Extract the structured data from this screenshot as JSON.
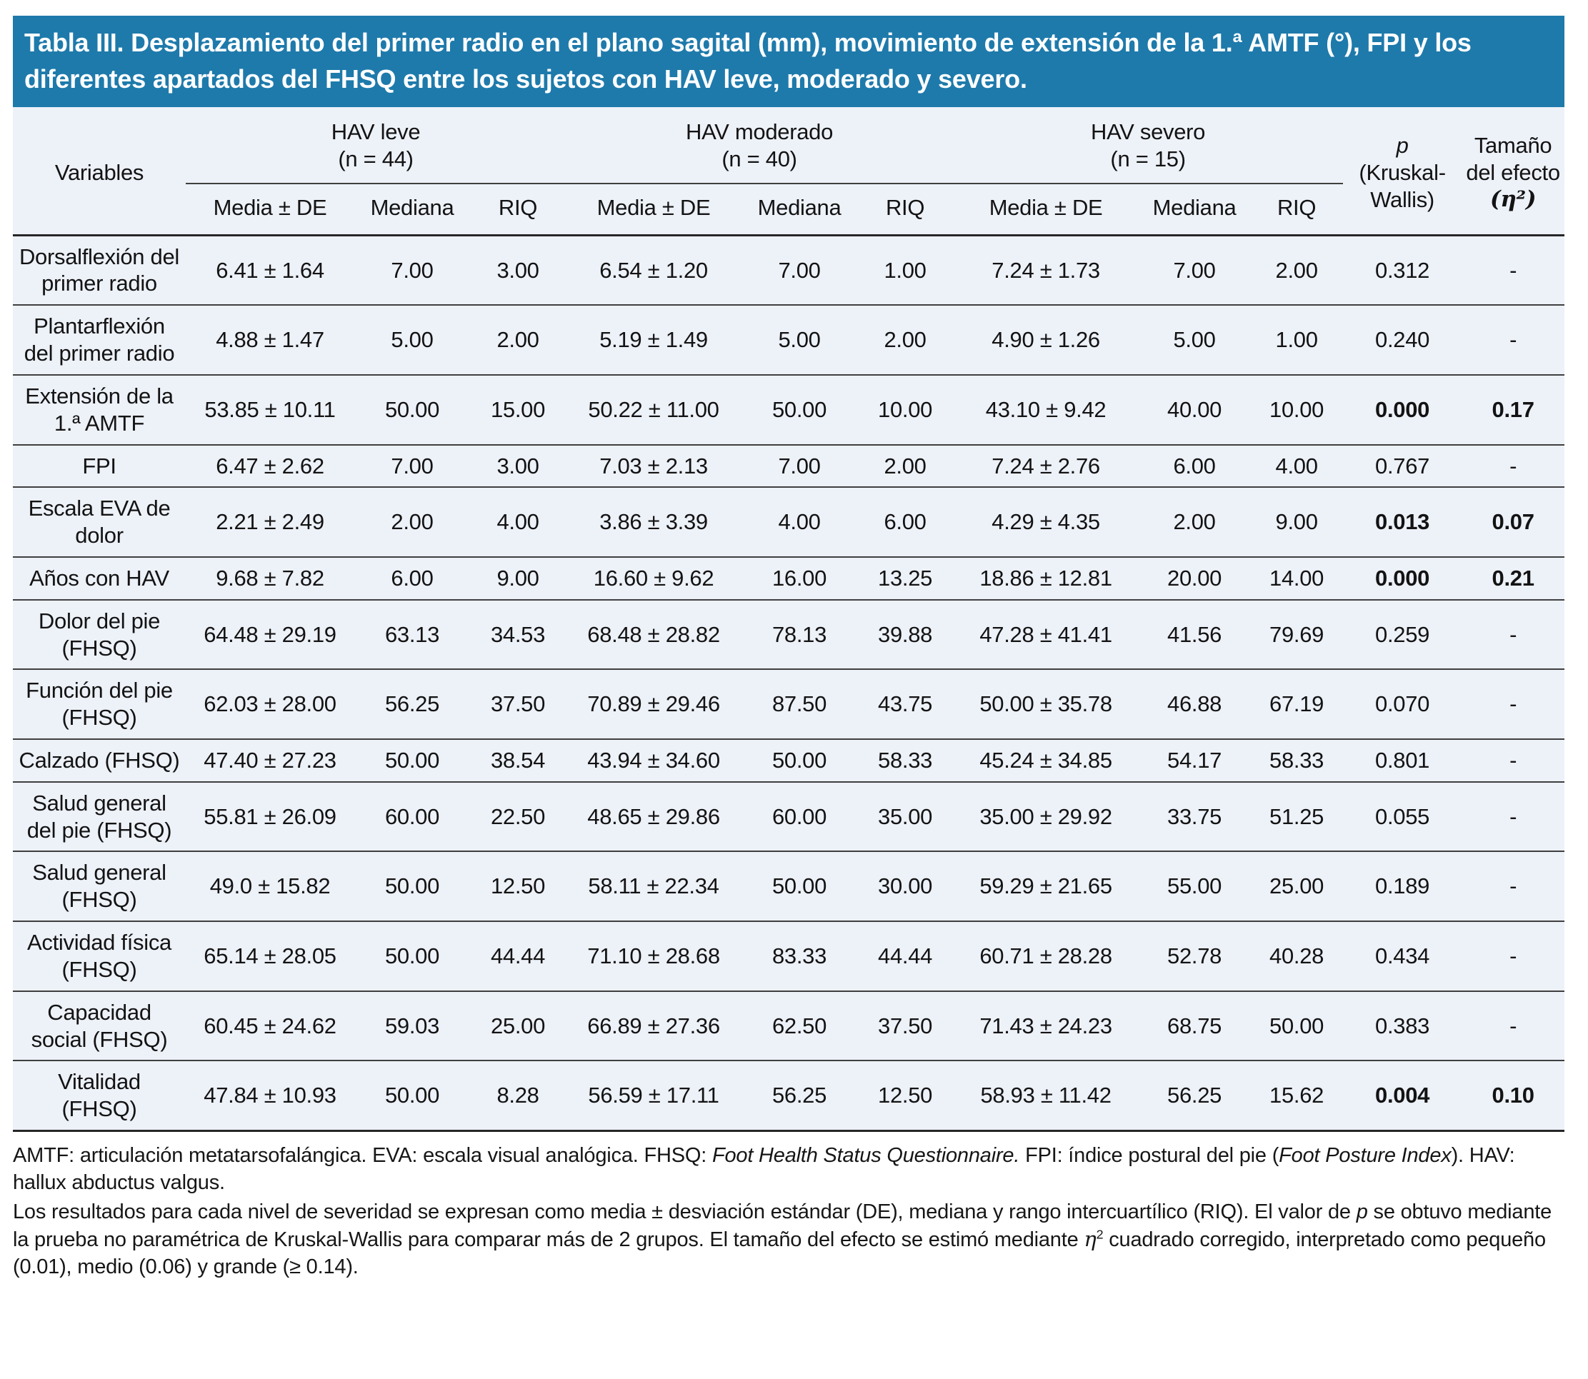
{
  "title": "Tabla III. Desplazamiento del primer radio en el plano sagital (mm), movimiento de extensión de la 1.ª AMTF (°), FPI y los diferentes apartados del FHSQ entre los sujetos con HAV leve, moderado y severo.",
  "colors": {
    "header_bg": "#1e7aab",
    "body_bg": "#edf1f8",
    "line": "#3f3f3f",
    "title_text": "#ffffff"
  },
  "columns": {
    "variables_label": "Variables",
    "groups": [
      {
        "name": "HAV leve",
        "n": "(n = 44)"
      },
      {
        "name": "HAV moderado",
        "n": "(n = 40)"
      },
      {
        "name": "HAV severo",
        "n": "(n = 15)"
      }
    ],
    "sub_headers": [
      "Media ± DE",
      "Mediana",
      "RIQ"
    ],
    "p_label": "p",
    "p_sub": "(Kruskal-Wallis)",
    "effect_label": "Tamaño del efecto",
    "effect_symbol": "(η²)"
  },
  "rows": [
    {
      "variable": "Dorsalflexión del primer radio",
      "values": [
        "6.41 ± 1.64",
        "7.00",
        "3.00",
        "6.54 ± 1.20",
        "7.00",
        "1.00",
        "7.24 ± 1.73",
        "7.00",
        "2.00"
      ],
      "p": "0.312",
      "effect": "-",
      "significant": false
    },
    {
      "variable": "Plantarflexión del primer radio",
      "values": [
        "4.88 ± 1.47",
        "5.00",
        "2.00",
        "5.19 ± 1.49",
        "5.00",
        "2.00",
        "4.90 ± 1.26",
        "5.00",
        "1.00"
      ],
      "p": "0.240",
      "effect": "-",
      "significant": false
    },
    {
      "variable": "Extensión de la 1.ª AMTF",
      "values": [
        "53.85 ± 10.11",
        "50.00",
        "15.00",
        "50.22 ± 11.00",
        "50.00",
        "10.00",
        "43.10 ± 9.42",
        "40.00",
        "10.00"
      ],
      "p": "0.000",
      "effect": "0.17",
      "significant": true
    },
    {
      "variable": "FPI",
      "values": [
        "6.47 ± 2.62",
        "7.00",
        "3.00",
        "7.03 ± 2.13",
        "7.00",
        "2.00",
        "7.24 ± 2.76",
        "6.00",
        "4.00"
      ],
      "p": "0.767",
      "effect": "-",
      "significant": false
    },
    {
      "variable": "Escala EVA de dolor",
      "values": [
        "2.21 ± 2.49",
        "2.00",
        "4.00",
        "3.86 ± 3.39",
        "4.00",
        "6.00",
        "4.29 ± 4.35",
        "2.00",
        "9.00"
      ],
      "p": "0.013",
      "effect": "0.07",
      "significant": true
    },
    {
      "variable": "Años con HAV",
      "values": [
        "9.68 ± 7.82",
        "6.00",
        "9.00",
        "16.60 ± 9.62",
        "16.00",
        "13.25",
        "18.86 ± 12.81",
        "20.00",
        "14.00"
      ],
      "p": "0.000",
      "effect": "0.21",
      "significant": true
    },
    {
      "variable": "Dolor del pie (FHSQ)",
      "values": [
        "64.48 ± 29.19",
        "63.13",
        "34.53",
        "68.48 ± 28.82",
        "78.13",
        "39.88",
        "47.28 ± 41.41",
        "41.56",
        "79.69"
      ],
      "p": "0.259",
      "effect": "-",
      "significant": false
    },
    {
      "variable": "Función del pie (FHSQ)",
      "values": [
        "62.03 ± 28.00",
        "56.25",
        "37.50",
        "70.89 ± 29.46",
        "87.50",
        "43.75",
        "50.00 ± 35.78",
        "46.88",
        "67.19"
      ],
      "p": "0.070",
      "effect": "-",
      "significant": false
    },
    {
      "variable": "Calzado (FHSQ)",
      "values": [
        "47.40 ± 27.23",
        "50.00",
        "38.54",
        "43.94 ± 34.60",
        "50.00",
        "58.33",
        "45.24 ± 34.85",
        "54.17",
        "58.33"
      ],
      "p": "0.801",
      "effect": "-",
      "significant": false
    },
    {
      "variable": "Salud general del pie (FHSQ)",
      "values": [
        "55.81 ± 26.09",
        "60.00",
        "22.50",
        "48.65 ± 29.86",
        "60.00",
        "35.00",
        "35.00 ± 29.92",
        "33.75",
        "51.25"
      ],
      "p": "0.055",
      "effect": "-",
      "significant": false
    },
    {
      "variable": "Salud general (FHSQ)",
      "values": [
        "49.0 ± 15.82",
        "50.00",
        "12.50",
        "58.11 ± 22.34",
        "50.00",
        "30.00",
        "59.29 ± 21.65",
        "55.00",
        "25.00"
      ],
      "p": "0.189",
      "effect": "-",
      "significant": false
    },
    {
      "variable": "Actividad física (FHSQ)",
      "values": [
        "65.14 ± 28.05",
        "50.00",
        "44.44",
        "71.10 ± 28.68",
        "83.33",
        "44.44",
        "60.71 ± 28.28",
        "52.78",
        "40.28"
      ],
      "p": "0.434",
      "effect": "-",
      "significant": false
    },
    {
      "variable": "Capacidad social (FHSQ)",
      "values": [
        "60.45 ± 24.62",
        "59.03",
        "25.00",
        "66.89 ± 27.36",
        "62.50",
        "37.50",
        "71.43 ± 24.23",
        "68.75",
        "50.00"
      ],
      "p": "0.383",
      "effect": "-",
      "significant": false
    },
    {
      "variable": "Vitalidad (FHSQ)",
      "values": [
        "47.84 ± 10.93",
        "50.00",
        "8.28",
        "56.59 ± 17.11",
        "56.25",
        "12.50",
        "58.93 ± 11.42",
        "56.25",
        "15.62"
      ],
      "p": "0.004",
      "effect": "0.10",
      "significant": true
    }
  ],
  "footnotes": [
    {
      "segments": [
        {
          "text": "AMTF: articulación metatarsofalángica. EVA: escala visual analógica. FHSQ: "
        },
        {
          "text": "Foot Health Status Questionnaire.",
          "italic": true
        },
        {
          "text": " FPI: índice postural del pie ("
        },
        {
          "text": "Foot Posture Index",
          "italic": true
        },
        {
          "text": "). HAV: hallux abductus valgus."
        }
      ]
    },
    {
      "segments": [
        {
          "text": "Los resultados para cada nivel de severidad se expresan como media ± desviación estándar (DE), mediana y rango intercuartílico (RIQ). El valor de "
        },
        {
          "text": "p",
          "italic": true
        },
        {
          "text": " se obtuvo mediante la prueba no paramétrica de Kruskal-Wallis para comparar más de 2 grupos. El tamaño del efecto se estimó mediante "
        },
        {
          "text": "η",
          "eta": true
        },
        {
          "text": "2",
          "sup": true
        },
        {
          "text": " cuadrado corregido, interpretado como pequeño (0.01), medio (0.06) y grande (≥ 0.14)."
        }
      ]
    }
  ]
}
